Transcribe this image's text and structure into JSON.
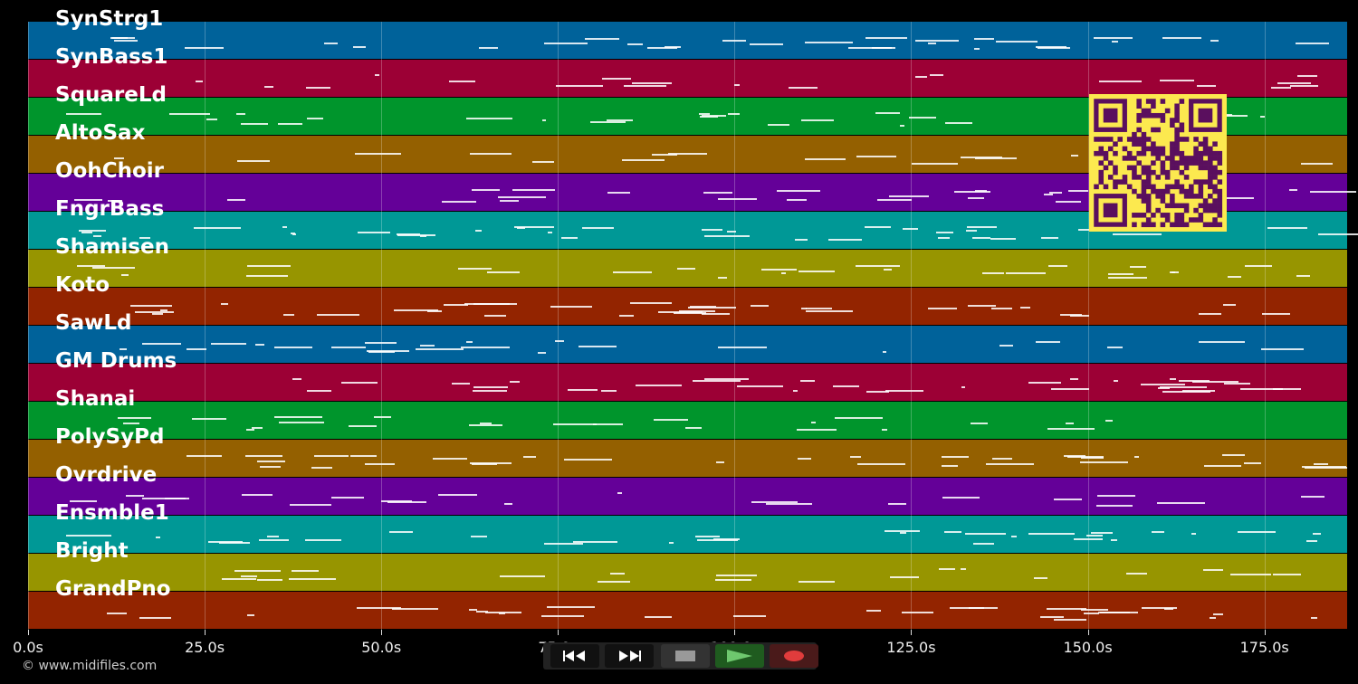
{
  "tracks": [
    {
      "name": "SynStrg1",
      "color": "#00629a"
    },
    {
      "name": "SynBass1",
      "color": "#9c0035"
    },
    {
      "name": "SquareLd",
      "color": "#00952c"
    },
    {
      "name": "AltoSax",
      "color": "#946000"
    },
    {
      "name": "OohChoir",
      "color": "#640098"
    },
    {
      "name": "FngrBass",
      "color": "#009896"
    },
    {
      "name": "Shamisen",
      "color": "#979500"
    },
    {
      "name": "Koto",
      "color": "#932400"
    },
    {
      "name": "SawLd",
      "color": "#00629a"
    },
    {
      "name": "GM Drums",
      "color": "#9c0035"
    },
    {
      "name": "Shanai",
      "color": "#00952c"
    },
    {
      "name": "PolySyPd",
      "color": "#946000"
    },
    {
      "name": "Ovrdrive",
      "color": "#640098"
    },
    {
      "name": "Ensmble1",
      "color": "#009896"
    },
    {
      "name": "Bright",
      "color": "#979500"
    },
    {
      "name": "GrandPno",
      "color": "#932400"
    }
  ],
  "axis": {
    "ticks": [
      "0.0s",
      "25.0s",
      "50.0s",
      "75.0s",
      "100.0s",
      "125.0s",
      "150.0s",
      "175.0s"
    ]
  },
  "credit": "© www.midifiles.com",
  "transport": {
    "rewind_icon": "rewind-icon",
    "forward_icon": "fast-forward-icon",
    "stop_icon": "stop-icon",
    "play_icon": "play-icon",
    "record_icon": "record-icon"
  },
  "overlay": {
    "qr_icon": "qr-code-icon"
  }
}
